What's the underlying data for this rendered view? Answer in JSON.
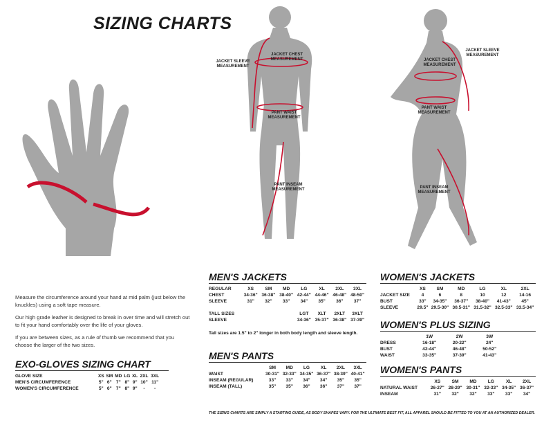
{
  "title": "SIZING CHARTS",
  "labels": {
    "jacket_sleeve": "JACKET SLEEVE MEASUREMENT",
    "jacket_chest": "JACKET CHEST MEASUREMENT",
    "pant_waist": "PANT WAIST MEASUREMENT",
    "pant_inseam": "PANT INSEAM MEASUREMENT"
  },
  "glove_text": [
    "Measure the circumference around your hand at mid palm (just below the knuckles) using a soft tape measure.",
    "Our high grade leather is designed to break in over time and will stretch out to fit your hand comfortably over the life of your gloves.",
    "If you are between sizes, as a rule of thumb we recommend that you choose the larger of the two sizes."
  ],
  "tables": {
    "gloves": {
      "title": "EXO-GLOVES SIZING CHART",
      "rows": [
        [
          "GLOVE SIZE",
          "XS",
          "SM",
          "MD",
          "LG",
          "XL",
          "2XL",
          "3XL"
        ],
        [
          "MEN'S CIRCUMFERENCE",
          "5\"",
          "6\"",
          "7\"",
          "8\"",
          "9\"",
          "10\"",
          "11\""
        ],
        [
          "WOMEN'S CIRCUMFERENCE",
          "5\"",
          "6\"",
          "7\"",
          "8\"",
          "9\"",
          "-",
          "-"
        ]
      ]
    },
    "mens_jackets": {
      "title": "MEN'S JACKETS",
      "rows": [
        [
          "REGULAR",
          "XS",
          "SM",
          "MD",
          "LG",
          "XL",
          "2XL",
          "3XL"
        ],
        [
          "CHEST",
          "34-36\"",
          "36-38\"",
          "38-40\"",
          "42-44\"",
          "44-46\"",
          "46-48\"",
          "48-50\""
        ],
        [
          "SLEEVE",
          "31\"",
          "32\"",
          "33\"",
          "34\"",
          "35\"",
          "36\"",
          "37\""
        ],
        [
          "",
          "",
          "",
          "",
          "",
          "",
          "",
          ""
        ],
        [
          "TALL SIZES",
          "",
          "",
          "",
          "LGT",
          "XLT",
          "2XLT",
          "3XLT"
        ],
        [
          "SLEEVE",
          "",
          "",
          "",
          "34-36\"",
          "35-37\"",
          "36-38\"",
          "37-39\""
        ]
      ],
      "note": "Tall sizes are 1.5\" to 2\" longer in both body length and sleeve length."
    },
    "mens_pants": {
      "title": "MEN'S PANTS",
      "rows": [
        [
          "",
          "SM",
          "MD",
          "LG",
          "XL",
          "2XL",
          "3XL"
        ],
        [
          "WAIST",
          "30-31\"",
          "32-33\"",
          "34-35\"",
          "36-37\"",
          "38-39\"",
          "40-41\""
        ],
        [
          "INSEAM (REGULAR)",
          "33\"",
          "33\"",
          "34\"",
          "34\"",
          "35\"",
          "35\""
        ],
        [
          "INSEAM (TALL)",
          "35\"",
          "35\"",
          "36\"",
          "36\"",
          "37\"",
          "37\""
        ]
      ]
    },
    "womens_jackets": {
      "title": "WOMEN'S JACKETS",
      "rows": [
        [
          "",
          "XS",
          "SM",
          "MD",
          "LG",
          "XL",
          "2XL"
        ],
        [
          "JACKET SIZE",
          "4",
          "6",
          "8",
          "10",
          "12",
          "14-16"
        ],
        [
          "BUST",
          "33\"",
          "34-35\"",
          "36-37\"",
          "38-40\"",
          "41-43\"",
          "45\""
        ],
        [
          "SLEEVE",
          "29.5\"",
          "29.5-30\"",
          "30.5-31\"",
          "31.5-32\"",
          "32.5-33\"",
          "33.5-34\""
        ]
      ]
    },
    "womens_plus": {
      "title": "WOMEN'S PLUS SIZING",
      "rows": [
        [
          "",
          "1W",
          "2W",
          "3W"
        ],
        [
          "DRESS",
          "16-18\"",
          "20-22\"",
          "24\""
        ],
        [
          "BUST",
          "42-44\"",
          "46-48\"",
          "50-52\""
        ],
        [
          "WAIST",
          "33-35\"",
          "37-39\"",
          "41-43\""
        ]
      ]
    },
    "womens_pants": {
      "title": "WOMEN'S PANTS",
      "rows": [
        [
          "",
          "XS",
          "SM",
          "MD",
          "LG",
          "XL",
          "2XL"
        ],
        [
          "NATURAL WAIST",
          "26-27\"",
          "28-29\"",
          "30-31\"",
          "32-33\"",
          "34-35\"",
          "36-37\""
        ],
        [
          "INSEAM",
          "31\"",
          "32\"",
          "32\"",
          "33\"",
          "33\"",
          "34\""
        ]
      ]
    }
  },
  "disclaimer": "THE SIZING CHARTS ARE SIMPLY A STARTING GUIDE, AS BODY SHAPES VARY. FOR THE ULTIMATE BEST FIT, ALL APPAREL SHOULD BE FITTED TO YOU AT AN AUTHORIZED DEALER.",
  "colors": {
    "accent": "#c8102e",
    "figure": "#a6a6a6"
  }
}
